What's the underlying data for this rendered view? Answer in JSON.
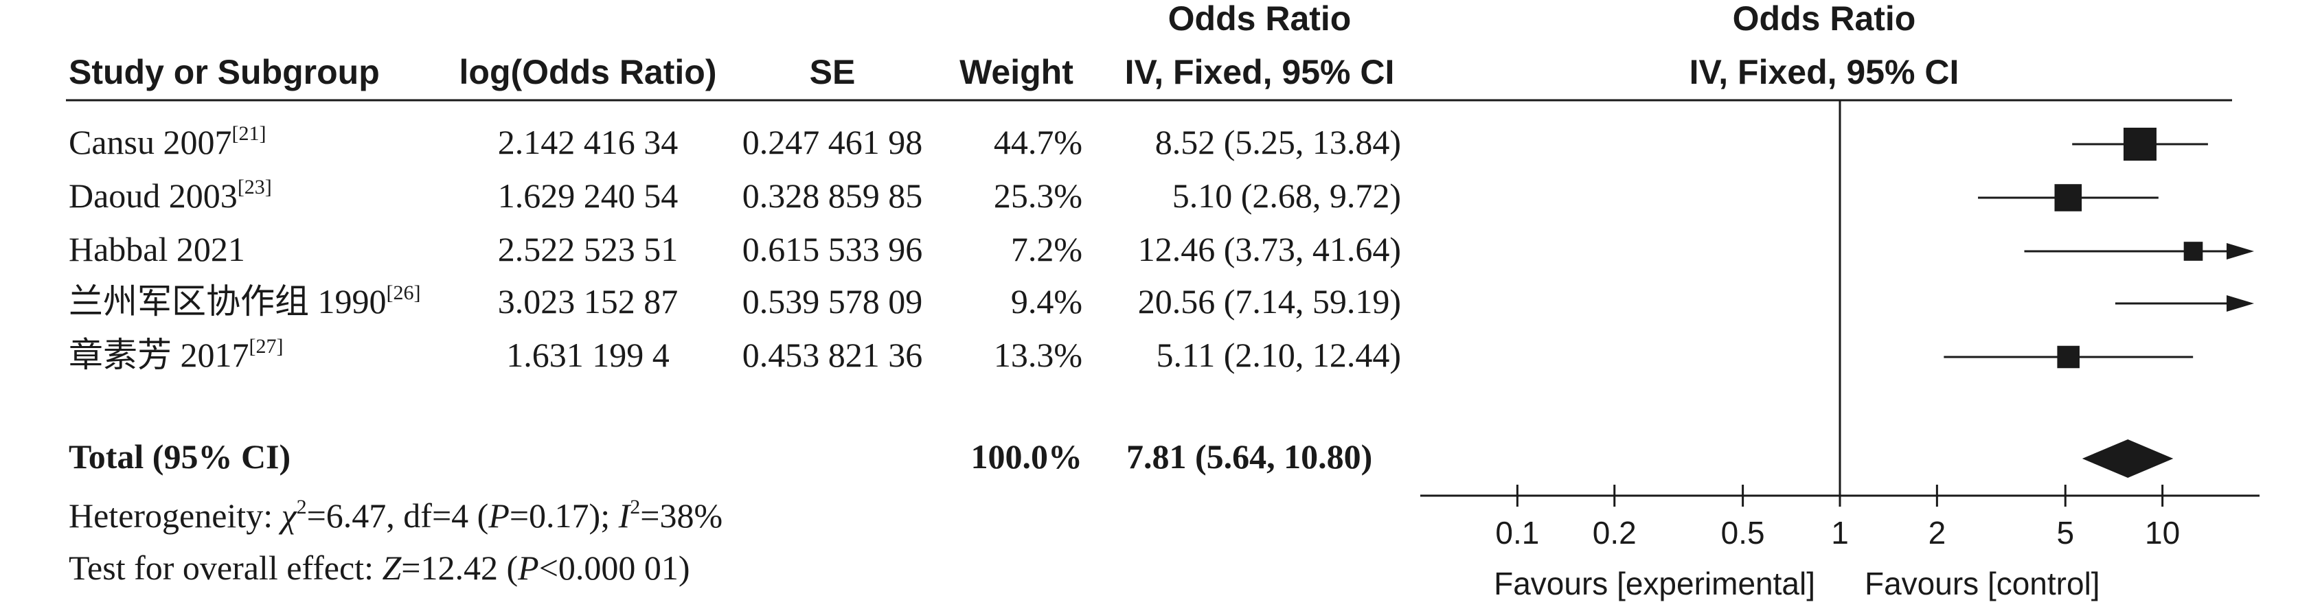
{
  "chart_data": {
    "type": "forest",
    "headers": {
      "study": "Study or Subgroup",
      "logor": "log(Odds Ratio)",
      "se": "SE",
      "weight": "Weight",
      "or_title": "Odds Ratio",
      "or_method": "IV, Fixed, 95% CI",
      "plot_title": "Odds Ratio",
      "plot_method": "IV, Fixed, 95% CI"
    },
    "studies": [
      {
        "name": "Cansu 2007",
        "ref": "[21]",
        "logor": "2.142 416 34",
        "se": "0.247 461 98",
        "weight": "44.7%",
        "ci_text": "8.52 (5.25, 13.84)",
        "or": 8.52,
        "lower": 5.25,
        "upper": 13.84,
        "weight_pct": 44.7
      },
      {
        "name": "Daoud 2003",
        "ref": "[23]",
        "logor": "1.629 240 54",
        "se": "0.328 859 85",
        "weight": "25.3%",
        "ci_text": "5.10 (2.68, 9.72)",
        "or": 5.1,
        "lower": 2.68,
        "upper": 9.72,
        "weight_pct": 25.3
      },
      {
        "name": "Habbal 2021",
        "ref": "",
        "logor": "2.522 523 51",
        "se": "0.615 533 96",
        "weight": "7.2%",
        "ci_text": "12.46 (3.73, 41.64)",
        "or": 12.46,
        "lower": 3.73,
        "upper": 41.64,
        "weight_pct": 7.2
      },
      {
        "name": "兰州军区协作组 1990",
        "ref": "[26]",
        "logor": "3.023 152 87",
        "se": "0.539 578 09",
        "weight": "9.4%",
        "ci_text": "20.56 (7.14, 59.19)",
        "or": 20.56,
        "lower": 7.14,
        "upper": 59.19,
        "weight_pct": 9.4
      },
      {
        "name": "章素芳 2017",
        "ref": "[27]",
        "logor": "1.631 199 4",
        "se": "0.453 821 36",
        "weight": "13.3%",
        "ci_text": "5.11 (2.10, 12.44)",
        "or": 5.11,
        "lower": 2.1,
        "upper": 12.44,
        "weight_pct": 13.3
      }
    ],
    "total": {
      "label": "Total (95% CI)",
      "weight": "100.0%",
      "ci_text": "7.81 (5.64, 10.80)",
      "or": 7.81,
      "lower": 5.64,
      "upper": 10.8
    },
    "heterogeneity": {
      "prefix": "Heterogeneity: ",
      "chi_symbol": "χ",
      "chi_value": "=6.47, df=4 (",
      "p_symbol": "P",
      "p_value": "=0.17); ",
      "i_symbol": "I",
      "i_value": "=38%"
    },
    "overall_effect": {
      "prefix": "Test for overall effect: ",
      "z_symbol": "Z",
      "z_value": "=12.42 (",
      "p_symbol": "P",
      "p_value": "<0.000 01)"
    },
    "x_axis": {
      "scale": "log",
      "range": [
        0.05,
        20
      ],
      "ticks": [
        {
          "value": 0.1,
          "label": "0.1"
        },
        {
          "value": 0.2,
          "label": "0.2"
        },
        {
          "value": 0.5,
          "label": "0.5"
        },
        {
          "value": 1,
          "label": "1"
        },
        {
          "value": 2,
          "label": "2"
        },
        {
          "value": 5,
          "label": "5"
        },
        {
          "value": 10,
          "label": "10"
        }
      ],
      "favours_left": "Favours [experimental]",
      "favours_right": "Favours [control]"
    }
  }
}
